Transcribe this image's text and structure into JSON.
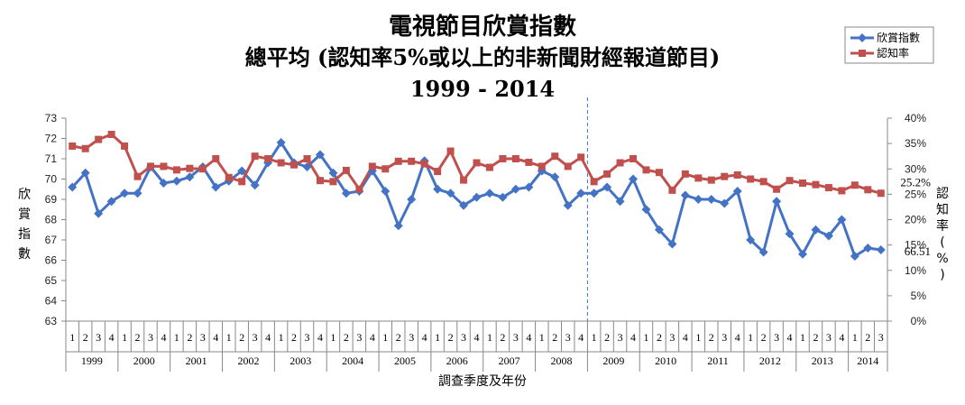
{
  "chart_data": {
    "type": "line",
    "title": {
      "line1": "電視節目欣賞指數",
      "line2": "總平均 (認知率5%或以上的非新聞財經報道節目)",
      "line3": "1999 - 2014"
    },
    "xlabel": "調查季度及年份",
    "ylabel_left": "欣賞指數",
    "ylabel_right": "認知率(%)",
    "y_left": {
      "min": 63,
      "max": 73,
      "ticks": [
        "63",
        "64",
        "65",
        "66",
        "67",
        "68",
        "69",
        "70",
        "71",
        "72",
        "73"
      ]
    },
    "y_right": {
      "min": 0,
      "max": 40,
      "ticks": [
        "0%",
        "5%",
        "10%",
        "15%",
        "20%",
        "25%",
        "30%",
        "35%",
        "40%"
      ]
    },
    "legend_position": "top-right",
    "grid": false,
    "years": [
      "1999",
      "2000",
      "2001",
      "2002",
      "2003",
      "2004",
      "2005",
      "2006",
      "2007",
      "2008",
      "2009",
      "2010",
      "2011",
      "2012",
      "2013",
      "2014"
    ],
    "quarters_per_year": [
      4,
      4,
      4,
      4,
      4,
      4,
      4,
      4,
      4,
      4,
      4,
      4,
      4,
      4,
      4,
      3
    ],
    "quarter_labels": [
      "1",
      "2",
      "3",
      "4"
    ],
    "divider_after_index": 39,
    "series": [
      {
        "name": "欣賞指數",
        "axis": "left",
        "color": "#4472C4",
        "marker": "diamond",
        "values": [
          69.6,
          70.3,
          68.3,
          68.9,
          69.3,
          69.3,
          70.6,
          69.8,
          69.9,
          70.1,
          70.6,
          69.6,
          69.9,
          70.4,
          69.7,
          70.8,
          71.8,
          70.8,
          70.6,
          71.2,
          70.3,
          69.3,
          69.4,
          70.4,
          69.4,
          67.7,
          69.0,
          70.9,
          69.5,
          69.3,
          68.7,
          69.1,
          69.3,
          69.1,
          69.5,
          69.6,
          70.4,
          70.1,
          68.7,
          69.3,
          69.3,
          69.6,
          68.9,
          70.0,
          68.5,
          67.5,
          66.8,
          69.2,
          69.0,
          69.0,
          68.8,
          69.4,
          67.0,
          66.4,
          68.9,
          67.3,
          66.3,
          67.5,
          67.2,
          68.0,
          66.2,
          66.6,
          66.51
        ]
      },
      {
        "name": "認知率",
        "axis": "right",
        "color": "#C0504D",
        "marker": "square",
        "values": [
          34.5,
          34.0,
          35.8,
          36.8,
          34.5,
          28.5,
          30.5,
          30.5,
          29.8,
          30.1,
          30.0,
          32.0,
          28.3,
          27.5,
          32.5,
          32.0,
          31.2,
          30.8,
          32.0,
          27.7,
          27.5,
          29.7,
          26.0,
          30.5,
          30.0,
          31.5,
          31.5,
          31.0,
          29.5,
          33.5,
          27.8,
          31.2,
          30.3,
          32.0,
          32.0,
          31.3,
          30.5,
          32.5,
          30.5,
          32.3,
          27.5,
          29.0,
          31.2,
          32.0,
          29.8,
          29.3,
          25.8,
          29.0,
          28.2,
          27.8,
          28.5,
          28.8,
          28.0,
          27.5,
          26.0,
          27.7,
          27.2,
          26.9,
          26.3,
          25.7,
          26.8,
          25.9,
          25.2
        ]
      }
    ],
    "annotations": [
      {
        "series": 1,
        "index": 62,
        "text": "25.2%"
      },
      {
        "series": 0,
        "index": 62,
        "text": "66.51"
      }
    ]
  }
}
